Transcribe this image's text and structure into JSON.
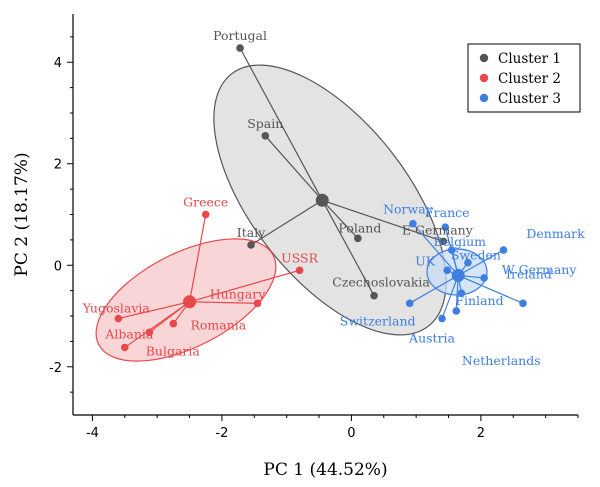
{
  "chart_data": {
    "type": "scatter",
    "xlabel": "PC 1 (44.52%)",
    "ylabel": "PC 2 (18.17%)",
    "xlim": [
      -4.3,
      3.5
    ],
    "ylim": [
      -2.95,
      4.95
    ],
    "xticks": [
      -4,
      -2,
      0,
      2
    ],
    "yticks": [
      -2,
      0,
      2,
      4
    ],
    "grid": false,
    "legend_position": "top-right",
    "series": [
      {
        "name": "Cluster 1",
        "color": "#555555",
        "ellipse_fill": "#d9d9d9",
        "centroid": [
          -0.45,
          1.28
        ],
        "points": [
          {
            "label": "Portugal",
            "x": -1.72,
            "y": 4.28
          },
          {
            "label": "Spain",
            "x": -1.33,
            "y": 2.55
          },
          {
            "label": "Italy",
            "x": -1.55,
            "y": 0.4
          },
          {
            "label": "Poland",
            "x": 0.1,
            "y": 0.53
          },
          {
            "label": "Czechoslovakia",
            "x": 0.35,
            "y": -0.6
          },
          {
            "label": "E Germany",
            "x": 1.42,
            "y": 0.47
          }
        ]
      },
      {
        "name": "Cluster 2",
        "color": "#e8474b",
        "ellipse_fill": "#f6c8c9",
        "centroid": [
          -2.5,
          -0.72
        ],
        "points": [
          {
            "label": "Greece",
            "x": -2.25,
            "y": 1.0
          },
          {
            "label": "USSR",
            "x": -0.8,
            "y": -0.1
          },
          {
            "label": "Hungary",
            "x": -1.45,
            "y": -0.75
          },
          {
            "label": "Yugoslavia",
            "x": -3.6,
            "y": -1.05
          },
          {
            "label": "Romania",
            "x": -2.75,
            "y": -1.15
          },
          {
            "label": "Albania",
            "x": -3.12,
            "y": -1.32
          },
          {
            "label": "Bulgaria",
            "x": -3.5,
            "y": -1.62
          }
        ]
      },
      {
        "name": "Cluster 3",
        "color": "#3d7fe0",
        "ellipse_fill": "#c8dcf6",
        "centroid": [
          1.65,
          -0.2
        ],
        "points": [
          {
            "label": "Norway",
            "x": 0.95,
            "y": 0.82
          },
          {
            "label": "France",
            "x": 1.45,
            "y": 0.75
          },
          {
            "label": "Belgium",
            "x": 1.55,
            "y": 0.3
          },
          {
            "label": "UK",
            "x": 1.48,
            "y": -0.1
          },
          {
            "label": "Denmark",
            "x": 2.35,
            "y": 0.3
          },
          {
            "label": "Sweden",
            "x": 1.8,
            "y": 0.05
          },
          {
            "label": "W Germany",
            "x": 2.05,
            "y": -0.25
          },
          {
            "label": "Ireland",
            "x": 2.65,
            "y": -0.75
          },
          {
            "label": "Finland",
            "x": 1.7,
            "y": -0.55
          },
          {
            "label": "Switzerland",
            "x": 0.9,
            "y": -0.75
          },
          {
            "label": "Austria",
            "x": 1.4,
            "y": -1.05
          },
          {
            "label": "Netherlands",
            "x": 1.62,
            "y": -0.9
          }
        ]
      }
    ]
  }
}
